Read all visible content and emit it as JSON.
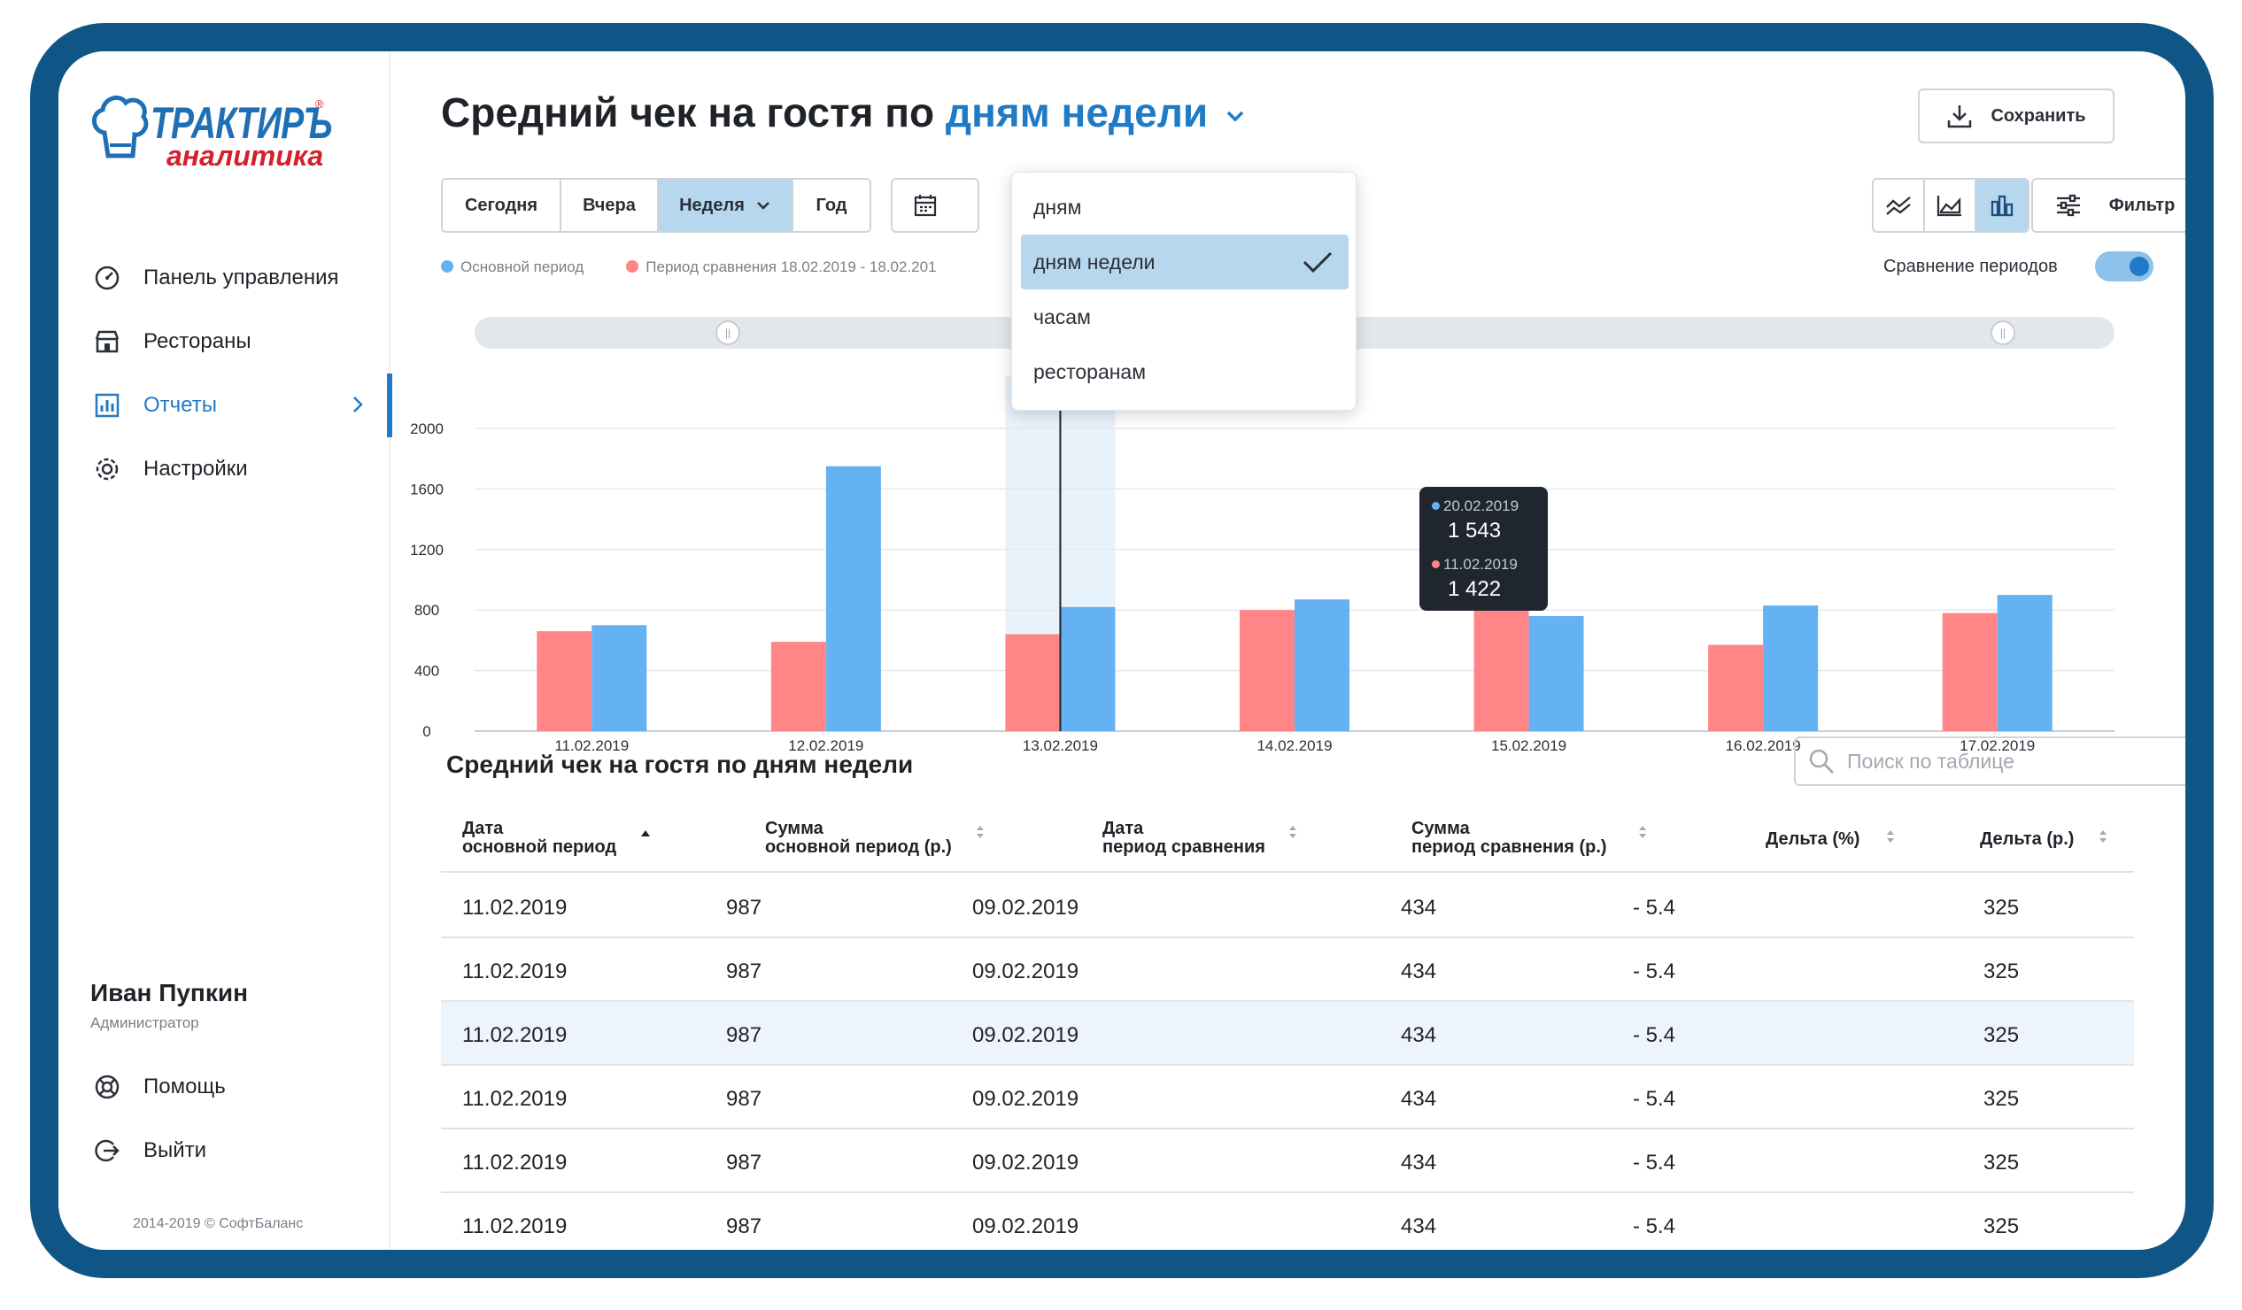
{
  "app": {
    "logo_text": "ТРАКТИРЪ",
    "logo_sub": "аналитика",
    "logo_reg": "®"
  },
  "sidebar": {
    "items": [
      {
        "label": "Панель управления",
        "icon": "dashboard-icon"
      },
      {
        "label": "Рестораны",
        "icon": "restaurant-icon"
      },
      {
        "label": "Отчеты",
        "icon": "report-icon",
        "active": true
      },
      {
        "label": "Настройки",
        "icon": "gear-icon"
      }
    ],
    "user_name": "Иван Пупкин",
    "user_role": "Администратор",
    "help_label": "Помощь",
    "logout_label": "Выйти",
    "copyright": "2014-2019 © СофтБаланс"
  },
  "header": {
    "title_prefix": "Средний чек на гостя по",
    "title_group": "дням недели",
    "save_label": "Сохранить"
  },
  "period_tabs": [
    "Сегодня",
    "Вчера",
    "Неделя",
    "Год"
  ],
  "selected_period": "Неделя",
  "filter_label": "Фильтр",
  "legend": {
    "main": "Основной период",
    "compare": "Период сравнения 18.02.2019 - 18.02.201"
  },
  "compare_toggle_label": "Сравнение периодов",
  "compare_toggle_on": true,
  "dropdown": {
    "options": [
      "дням",
      "дням недели",
      "часам",
      "ресторанам"
    ],
    "selected": "дням недели"
  },
  "tooltip": {
    "date1": "20.02.2019",
    "value1": "1 543",
    "date2": "11.02.2019",
    "value2": "1 422"
  },
  "colors": {
    "main": "#65b2f2",
    "compare": "#ff8587",
    "accent": "#1f7bc6",
    "frame": "#0f5585"
  },
  "chart_data": {
    "type": "bar",
    "categories": [
      "11.02.2019",
      "12.02.2019",
      "13.02.2019",
      "14.02.2019",
      "15.02.2019",
      "16.02.2019",
      "17.02.2019"
    ],
    "series": [
      {
        "name": "Период сравнения 18.02.2019 - 18.02.201",
        "color": "#ff8587",
        "values": [
          660,
          590,
          640,
          800,
          930,
          570,
          780
        ]
      },
      {
        "name": "Основной период",
        "color": "#65b2f2",
        "values": [
          700,
          1750,
          820,
          870,
          760,
          830,
          900
        ]
      }
    ],
    "yticks": [
      0,
      400,
      800,
      1200,
      1600,
      2000
    ],
    "ylim": [
      0,
      2000
    ],
    "highlight_category": "13.02.2019"
  },
  "table": {
    "title": "Средний чек на гостя по дням недели",
    "search_placeholder": "Поиск по таблице",
    "headers": [
      [
        "Дата",
        "основной период"
      ],
      [
        "Сумма",
        "основной период (р.)"
      ],
      [
        "Дата",
        "период сравнения"
      ],
      [
        "Сумма",
        "период сравнения (р.)"
      ],
      [
        "Дельта (%)",
        ""
      ],
      [
        "Дельта (р.)",
        ""
      ]
    ],
    "rows": [
      [
        "11.02.2019",
        "987",
        "09.02.2019",
        "434",
        "- 5.4",
        "325"
      ],
      [
        "11.02.2019",
        "987",
        "09.02.2019",
        "434",
        "- 5.4",
        "325"
      ],
      [
        "11.02.2019",
        "987",
        "09.02.2019",
        "434",
        "- 5.4",
        "325"
      ],
      [
        "11.02.2019",
        "987",
        "09.02.2019",
        "434",
        "- 5.4",
        "325"
      ],
      [
        "11.02.2019",
        "987",
        "09.02.2019",
        "434",
        "- 5.4",
        "325"
      ],
      [
        "11.02.2019",
        "987",
        "09.02.2019",
        "434",
        "- 5.4",
        "325"
      ]
    ],
    "highlighted_row": 2
  }
}
